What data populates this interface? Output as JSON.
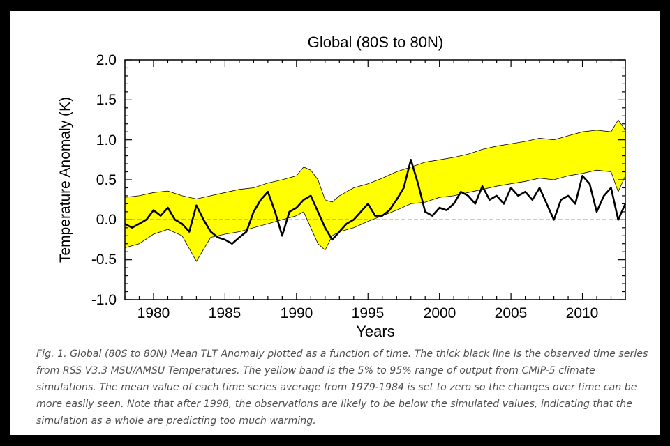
{
  "figure": {
    "caption": "Fig. 1.  Global (80S to 80N) Mean TLT Anomaly plotted as a function of time.  The thick black line is the observed time series from RSS V3.3 MSU/AMSU Temperatures.  The yellow band is the 5% to 95% range of output from CMIP-5 climate simulations.  The mean value of each time series average from 1979-1984 is set to zero so the changes over time can be more easily seen.  Note that after 1998, the observations are likely to be below the simulated values, indicating that the simulation as a whole are predicting too much warming."
  },
  "colors": {
    "band": "#ffff00",
    "observed": "#000000",
    "background": "#ffffff",
    "frame": "#000000"
  },
  "chart_data": {
    "type": "area",
    "title": "Global (80S to 80N)",
    "xlabel": "Years",
    "ylabel": "Temperature Anomaly (K)",
    "xlim": [
      1978,
      2013
    ],
    "ylim": [
      -1.0,
      2.0
    ],
    "x_ticks": [
      "1980",
      "1985",
      "1990",
      "1995",
      "2000",
      "2005",
      "2010"
    ],
    "y_ticks": [
      "2.0",
      "1.5",
      "1.0",
      "0.5",
      "0.0",
      "-0.5",
      "-1.0"
    ],
    "grid": false,
    "zero_line": true,
    "band": {
      "label": "5% to 95% range of CMIP-5 simulations",
      "x": [
        1978.0,
        1979.0,
        1980.0,
        1981.0,
        1982.0,
        1983.0,
        1984.0,
        1985.0,
        1986.0,
        1987.0,
        1988.0,
        1989.0,
        1990.0,
        1990.5,
        1991.0,
        1991.5,
        1992.0,
        1992.5,
        1993.0,
        1994.0,
        1995.0,
        1996.0,
        1997.0,
        1998.0,
        1999.0,
        2000.0,
        2001.0,
        2002.0,
        2003.0,
        2004.0,
        2005.0,
        2006.0,
        2007.0,
        2008.0,
        2009.0,
        2010.0,
        2011.0,
        2012.0,
        2012.5,
        2013.0
      ],
      "upper": [
        0.28,
        0.3,
        0.34,
        0.36,
        0.3,
        0.26,
        0.3,
        0.34,
        0.38,
        0.4,
        0.46,
        0.5,
        0.55,
        0.66,
        0.62,
        0.5,
        0.25,
        0.22,
        0.3,
        0.4,
        0.45,
        0.52,
        0.6,
        0.66,
        0.72,
        0.75,
        0.78,
        0.82,
        0.88,
        0.92,
        0.95,
        0.98,
        1.02,
        1.0,
        1.05,
        1.1,
        1.12,
        1.1,
        1.25,
        1.12
      ],
      "lower": [
        -0.35,
        -0.3,
        -0.18,
        -0.12,
        -0.2,
        -0.52,
        -0.22,
        -0.18,
        -0.15,
        -0.1,
        -0.05,
        0.0,
        0.05,
        0.1,
        -0.1,
        -0.3,
        -0.38,
        -0.2,
        -0.15,
        -0.1,
        -0.02,
        0.05,
        0.12,
        0.2,
        0.22,
        0.28,
        0.3,
        0.34,
        0.38,
        0.42,
        0.45,
        0.48,
        0.52,
        0.5,
        0.55,
        0.58,
        0.62,
        0.6,
        0.35,
        0.55
      ]
    },
    "series": [
      {
        "label": "Observed (RSS V3.3 MSU/AMSU)",
        "x": [
          1978.0,
          1978.5,
          1979.0,
          1979.5,
          1980.0,
          1980.5,
          1981.0,
          1981.5,
          1982.0,
          1982.5,
          1983.0,
          1983.5,
          1984.0,
          1984.5,
          1985.0,
          1985.5,
          1986.0,
          1986.5,
          1987.0,
          1987.5,
          1988.0,
          1988.5,
          1989.0,
          1989.5,
          1990.0,
          1990.5,
          1991.0,
          1991.5,
          1992.0,
          1992.5,
          1993.0,
          1993.5,
          1994.0,
          1994.5,
          1995.0,
          1995.5,
          1996.0,
          1996.5,
          1997.0,
          1997.5,
          1998.0,
          1998.5,
          1999.0,
          1999.5,
          2000.0,
          2000.5,
          2001.0,
          2001.5,
          2002.0,
          2002.5,
          2003.0,
          2003.5,
          2004.0,
          2004.5,
          2005.0,
          2005.5,
          2006.0,
          2006.5,
          2007.0,
          2007.5,
          2008.0,
          2008.5,
          2009.0,
          2009.5,
          2010.0,
          2010.5,
          2011.0,
          2011.5,
          2012.0,
          2012.5,
          2013.0
        ],
        "y": [
          -0.05,
          -0.1,
          -0.05,
          0.0,
          0.12,
          0.05,
          0.15,
          0.0,
          -0.05,
          -0.15,
          0.18,
          0.0,
          -0.15,
          -0.22,
          -0.25,
          -0.3,
          -0.22,
          -0.15,
          0.1,
          0.25,
          0.35,
          0.1,
          -0.2,
          0.1,
          0.15,
          0.25,
          0.3,
          0.1,
          -0.1,
          -0.25,
          -0.15,
          -0.05,
          0.0,
          0.1,
          0.2,
          0.05,
          0.05,
          0.12,
          0.25,
          0.4,
          0.75,
          0.45,
          0.1,
          0.05,
          0.15,
          0.12,
          0.2,
          0.35,
          0.3,
          0.2,
          0.42,
          0.25,
          0.3,
          0.2,
          0.4,
          0.3,
          0.35,
          0.25,
          0.4,
          0.2,
          0.0,
          0.25,
          0.3,
          0.2,
          0.55,
          0.45,
          0.1,
          0.3,
          0.4,
          0.0,
          0.2
        ]
      }
    ]
  }
}
